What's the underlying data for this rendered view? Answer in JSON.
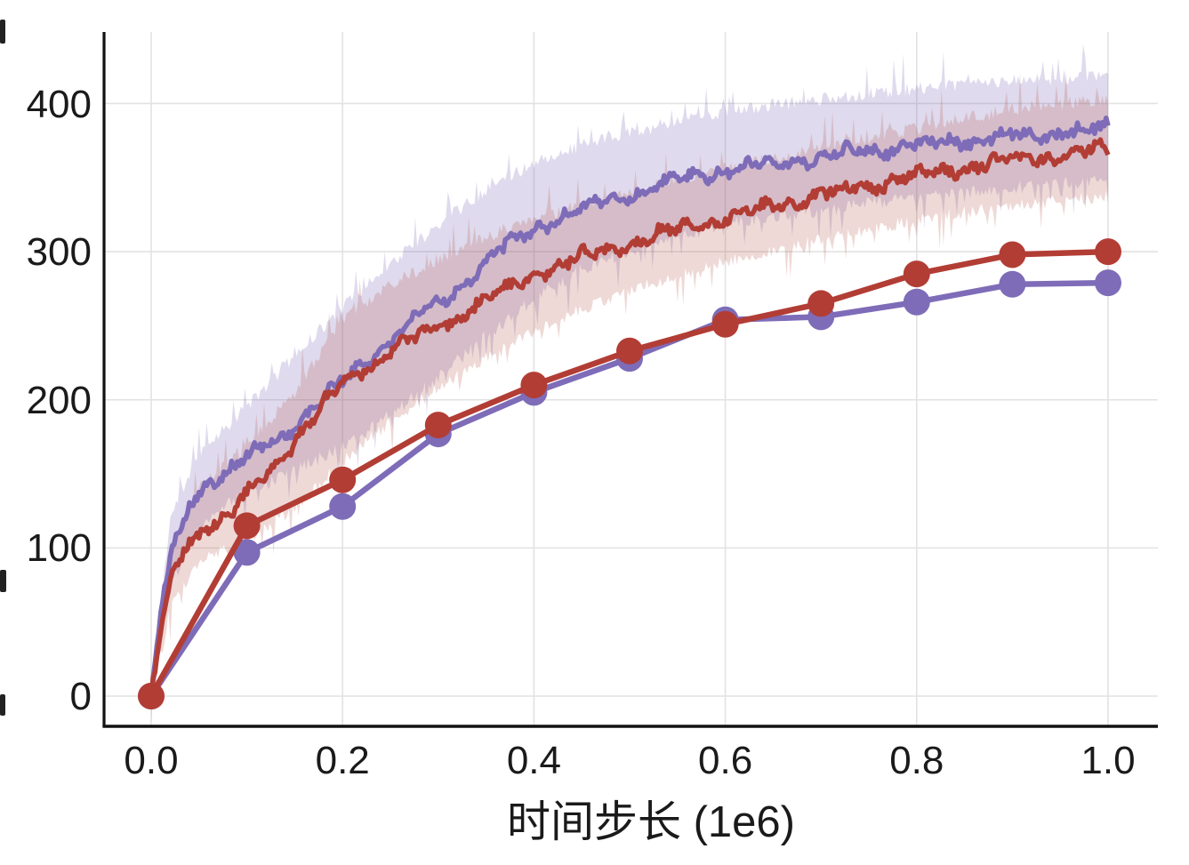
{
  "chart_data": {
    "type": "line",
    "title": "",
    "xlabel": "时间步长 (1e6)",
    "ylabel": "",
    "grid": true,
    "legend": "none",
    "x_axis": {
      "min": 0.0,
      "max": 1.05,
      "ticks": [
        0.0,
        0.2,
        0.4,
        0.6,
        0.8,
        1.0
      ],
      "tick_labels": [
        "0.0",
        "0.2",
        "0.4",
        "0.6",
        "0.8",
        "1.0"
      ]
    },
    "y_axis": {
      "min": -20,
      "max": 448,
      "ticks": [
        0,
        100,
        200,
        300,
        400
      ],
      "tick_labels": [
        "0",
        "100",
        "200",
        "300",
        "400"
      ]
    },
    "colors": {
      "purple": "#7e6cb8",
      "red": "#b23d35",
      "purple_band": "rgba(126,108,184,0.25)",
      "red_band": "rgba(178,80,70,0.22)",
      "grid": "#e2e2e2",
      "spine": "#111111"
    },
    "series": [
      {
        "name": "purple-shaded-noisy-curve",
        "style": "noisy-line-with-band",
        "color": "#7e6cb8",
        "band_color": "rgba(126,108,184,0.25)",
        "mean_points": [
          [
            0,
            0
          ],
          [
            0.01,
            55
          ],
          [
            0.02,
            95
          ],
          [
            0.04,
            130
          ],
          [
            0.06,
            145
          ],
          [
            0.08,
            152
          ],
          [
            0.1,
            160
          ],
          [
            0.125,
            171
          ],
          [
            0.15,
            183
          ],
          [
            0.175,
            197
          ],
          [
            0.2,
            212
          ],
          [
            0.225,
            227
          ],
          [
            0.25,
            241
          ],
          [
            0.275,
            253
          ],
          [
            0.3,
            265
          ],
          [
            0.325,
            279
          ],
          [
            0.35,
            293
          ],
          [
            0.375,
            305
          ],
          [
            0.4,
            316
          ],
          [
            0.45,
            329
          ],
          [
            0.5,
            339
          ],
          [
            0.55,
            348
          ],
          [
            0.6,
            355
          ],
          [
            0.65,
            360
          ],
          [
            0.7,
            364
          ],
          [
            0.75,
            369
          ],
          [
            0.8,
            372
          ],
          [
            0.85,
            375
          ],
          [
            0.9,
            378
          ],
          [
            0.95,
            381
          ],
          [
            1.0,
            383
          ]
        ],
        "band_upper": [
          [
            0,
            5
          ],
          [
            0.02,
            120
          ],
          [
            0.05,
            165
          ],
          [
            0.1,
            195
          ],
          [
            0.15,
            230
          ],
          [
            0.2,
            262
          ],
          [
            0.25,
            292
          ],
          [
            0.3,
            318
          ],
          [
            0.35,
            342
          ],
          [
            0.4,
            360
          ],
          [
            0.45,
            372
          ],
          [
            0.5,
            380
          ],
          [
            0.55,
            388
          ],
          [
            0.6,
            394
          ],
          [
            0.65,
            399
          ],
          [
            0.7,
            403
          ],
          [
            0.75,
            407
          ],
          [
            0.8,
            410
          ],
          [
            0.85,
            413
          ],
          [
            0.9,
            415
          ],
          [
            0.95,
            417
          ],
          [
            1.0,
            418
          ]
        ],
        "band_lower": [
          [
            0,
            -5
          ],
          [
            0.02,
            75
          ],
          [
            0.05,
            115
          ],
          [
            0.1,
            138
          ],
          [
            0.15,
            152
          ],
          [
            0.2,
            168
          ],
          [
            0.25,
            190
          ],
          [
            0.3,
            215
          ],
          [
            0.35,
            243
          ],
          [
            0.4,
            268
          ],
          [
            0.45,
            288
          ],
          [
            0.5,
            300
          ],
          [
            0.55,
            310
          ],
          [
            0.6,
            318
          ],
          [
            0.65,
            324
          ],
          [
            0.7,
            328
          ],
          [
            0.75,
            333
          ],
          [
            0.8,
            337
          ],
          [
            0.85,
            340
          ],
          [
            0.9,
            343
          ],
          [
            0.95,
            346
          ],
          [
            1.0,
            348
          ]
        ]
      },
      {
        "name": "red-shaded-noisy-curve",
        "style": "noisy-line-with-band",
        "color": "#b23d35",
        "band_color": "rgba(178,80,70,0.22)",
        "mean_points": [
          [
            0,
            0
          ],
          [
            0.01,
            45
          ],
          [
            0.02,
            80
          ],
          [
            0.04,
            105
          ],
          [
            0.06,
            115
          ],
          [
            0.08,
            120
          ],
          [
            0.1,
            135
          ],
          [
            0.125,
            152
          ],
          [
            0.15,
            172
          ],
          [
            0.175,
            192
          ],
          [
            0.2,
            212
          ],
          [
            0.225,
            223
          ],
          [
            0.25,
            233
          ],
          [
            0.275,
            241
          ],
          [
            0.3,
            249
          ],
          [
            0.325,
            258
          ],
          [
            0.35,
            267
          ],
          [
            0.375,
            276
          ],
          [
            0.4,
            284
          ],
          [
            0.45,
            296
          ],
          [
            0.5,
            306
          ],
          [
            0.55,
            315
          ],
          [
            0.6,
            323
          ],
          [
            0.65,
            331
          ],
          [
            0.7,
            338
          ],
          [
            0.75,
            345
          ],
          [
            0.8,
            351
          ],
          [
            0.85,
            357
          ],
          [
            0.9,
            362
          ],
          [
            0.95,
            365
          ],
          [
            1.0,
            369
          ]
        ],
        "band_upper": [
          [
            0,
            5
          ],
          [
            0.02,
            100
          ],
          [
            0.05,
            140
          ],
          [
            0.1,
            168
          ],
          [
            0.15,
            205
          ],
          [
            0.2,
            255
          ],
          [
            0.25,
            278
          ],
          [
            0.3,
            295
          ],
          [
            0.35,
            310
          ],
          [
            0.4,
            322
          ],
          [
            0.45,
            332
          ],
          [
            0.5,
            340
          ],
          [
            0.55,
            348
          ],
          [
            0.6,
            356
          ],
          [
            0.65,
            363
          ],
          [
            0.7,
            370
          ],
          [
            0.75,
            377
          ],
          [
            0.8,
            383
          ],
          [
            0.85,
            390
          ],
          [
            0.9,
            396
          ],
          [
            0.95,
            400
          ],
          [
            1.0,
            403
          ]
        ],
        "band_lower": [
          [
            0,
            -5
          ],
          [
            0.02,
            60
          ],
          [
            0.05,
            92
          ],
          [
            0.1,
            105
          ],
          [
            0.15,
            128
          ],
          [
            0.2,
            158
          ],
          [
            0.25,
            185
          ],
          [
            0.3,
            208
          ],
          [
            0.35,
            228
          ],
          [
            0.4,
            246
          ],
          [
            0.45,
            262
          ],
          [
            0.5,
            274
          ],
          [
            0.55,
            284
          ],
          [
            0.6,
            293
          ],
          [
            0.65,
            301
          ],
          [
            0.7,
            308
          ],
          [
            0.75,
            315
          ],
          [
            0.8,
            321
          ],
          [
            0.85,
            326
          ],
          [
            0.9,
            331
          ],
          [
            0.95,
            334
          ],
          [
            1.0,
            337
          ]
        ]
      },
      {
        "name": "purple-marker-curve",
        "style": "line-with-circle-markers",
        "color": "#7e6cb8",
        "x": [
          0.0,
          0.1,
          0.2,
          0.3,
          0.4,
          0.5,
          0.6,
          0.7,
          0.8,
          0.9,
          1.0
        ],
        "values": [
          0,
          97,
          128,
          177,
          205,
          228,
          254,
          256,
          266,
          278,
          279
        ]
      },
      {
        "name": "red-marker-curve",
        "style": "line-with-circle-markers",
        "color": "#b23d35",
        "x": [
          0.0,
          0.1,
          0.2,
          0.3,
          0.4,
          0.5,
          0.6,
          0.7,
          0.8,
          0.9,
          1.0
        ],
        "values": [
          0,
          115,
          146,
          183,
          210,
          233,
          251,
          265,
          285,
          298,
          300
        ]
      }
    ]
  }
}
